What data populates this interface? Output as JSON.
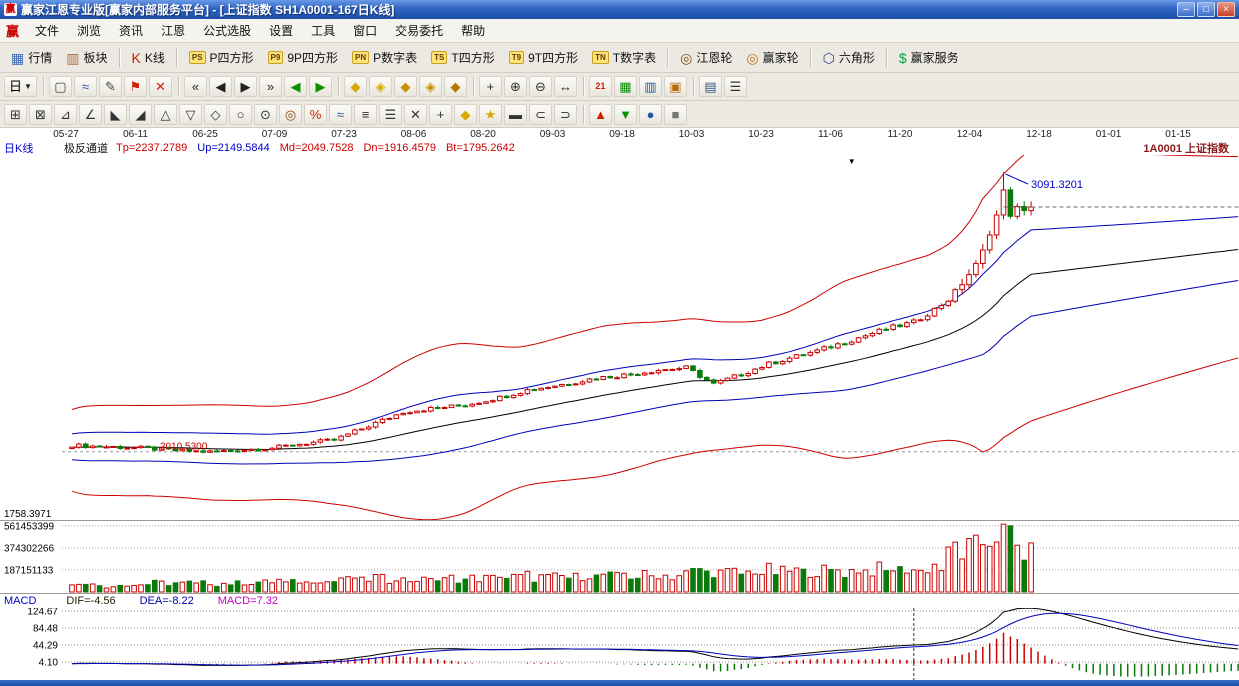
{
  "window": {
    "logo": "赢",
    "title": "赢家江恩专业版[赢家内部服务平台] - [上证指数  SH1A0001-167日K线]",
    "minimize_glyph": "–",
    "maximize_glyph": "□",
    "close_glyph": "×"
  },
  "menu": {
    "logo": "赢",
    "items": [
      "文件",
      "浏览",
      "资讯",
      "江恩",
      "公式选股",
      "设置",
      "工具",
      "窗口",
      "交易委托",
      "帮助"
    ]
  },
  "toolbar_main": {
    "items": [
      {
        "name": "quotes",
        "label": "行情",
        "glyph": "▦",
        "color": "#3a66b0"
      },
      {
        "name": "sectors",
        "label": "板块",
        "glyph": "▥",
        "color": "#b06a3a"
      },
      {
        "sep": true
      },
      {
        "name": "kline",
        "label": "K线",
        "glyph": "K",
        "color": "#cc2200"
      },
      {
        "sep": true
      },
      {
        "name": "p-square",
        "label": "P四方形",
        "badge": "PS"
      },
      {
        "name": "9p-square",
        "label": "9P四方形",
        "badge": "P9"
      },
      {
        "name": "p-number-table",
        "label": "P数字表",
        "badge": "PN"
      },
      {
        "name": "t-square",
        "label": "T四方形",
        "badge": "TS"
      },
      {
        "name": "9t-square",
        "label": "9T四方形",
        "badge": "T9"
      },
      {
        "name": "t-number-table",
        "label": "T数字表",
        "badge": "TN"
      },
      {
        "sep": true
      },
      {
        "name": "gann-wheel",
        "label": "江恩轮",
        "glyph": "◎",
        "color": "#8a4a10"
      },
      {
        "name": "winner-wheel",
        "label": "赢家轮",
        "glyph": "◎",
        "color": "#c07818"
      },
      {
        "sep": true
      },
      {
        "name": "hexagon",
        "label": "六角形",
        "glyph": "⬡",
        "color": "#2a4a8a"
      },
      {
        "sep": true
      },
      {
        "name": "winner-service",
        "label": "赢家服务",
        "glyph": "$",
        "color": "#00a040"
      }
    ]
  },
  "toolbar_draw": {
    "period_label": "日",
    "period_caret": "▼",
    "buttons": [
      {
        "name": "select-rect-tool",
        "glyph": "▢",
        "color": "#444444"
      },
      {
        "name": "wave-tool",
        "glyph": "≈",
        "color": "#2a55aa"
      },
      {
        "name": "pencil-tool",
        "glyph": "✎",
        "color": "#444444"
      },
      {
        "name": "flag-mark-tool",
        "glyph": "⚑",
        "color": "#cc2200"
      },
      {
        "name": "delete-draw-tool",
        "glyph": "✕",
        "color": "#cc2200"
      },
      {
        "sep": true
      },
      {
        "name": "first-bar-button",
        "glyph": "«",
        "color": "#222222"
      },
      {
        "name": "prev-bar-button",
        "glyph": "◀",
        "color": "#222222"
      },
      {
        "name": "next-bar-button",
        "glyph": "▶",
        "color": "#222222"
      },
      {
        "name": "last-bar-button",
        "glyph": "»",
        "color": "#222222"
      },
      {
        "name": "prev-page-button",
        "glyph": "◀",
        "color": "#0a9000"
      },
      {
        "name": "next-page-button",
        "glyph": "▶",
        "color": "#0a9000"
      },
      {
        "sep": true
      },
      {
        "name": "gann-diamond-1",
        "glyph": "◆",
        "color": "#d8a800"
      },
      {
        "name": "gann-diamond-2",
        "glyph": "◈",
        "color": "#d8a800"
      },
      {
        "name": "gann-diamond-3",
        "glyph": "◆",
        "color": "#c89000"
      },
      {
        "name": "gann-diamond-4",
        "glyph": "◈",
        "color": "#c89000"
      },
      {
        "name": "gann-diamond-5",
        "glyph": "◆",
        "color": "#b87800"
      },
      {
        "sep": true
      },
      {
        "name": "crosshair-tool",
        "glyph": "+",
        "color": "#333333"
      },
      {
        "name": "zoom-in-tool",
        "glyph": "⊕",
        "color": "#333333"
      },
      {
        "name": "zoom-out-tool",
        "glyph": "⊖",
        "color": "#333333"
      },
      {
        "name": "pan-tool",
        "glyph": "↔",
        "color": "#333333"
      },
      {
        "sep": true
      },
      {
        "name": "calendar-21-tool",
        "glyph": "21",
        "color": "#cc2200",
        "small": true
      },
      {
        "name": "green-grid-tool",
        "glyph": "▦",
        "color": "#0a9000"
      },
      {
        "name": "blue-grid-tool",
        "glyph": "▥",
        "color": "#2a55aa"
      },
      {
        "name": "orange-grid-tool",
        "glyph": "▣",
        "color": "#b86a10"
      },
      {
        "sep": true
      },
      {
        "name": "save-layout-tool",
        "glyph": "▤",
        "color": "#33557f"
      },
      {
        "name": "list-tool",
        "glyph": "☰",
        "color": "#333333"
      }
    ]
  },
  "toolbar_gann": {
    "buttons": [
      {
        "name": "gann-square-tool",
        "glyph": "⊞",
        "color": "#333333"
      },
      {
        "name": "gann-box-tool",
        "glyph": "⊠",
        "color": "#333333"
      },
      {
        "name": "gann-angle-tool",
        "glyph": "⊿",
        "color": "#333333"
      },
      {
        "name": "angle-line-tool",
        "glyph": "∠",
        "color": "#333333"
      },
      {
        "name": "fan-down-tool",
        "glyph": "◣",
        "color": "#333333"
      },
      {
        "name": "fan-up-tool",
        "glyph": "◢",
        "color": "#333333"
      },
      {
        "name": "triangle-tool",
        "glyph": "△",
        "color": "#333333"
      },
      {
        "name": "inverted-triangle-tool",
        "glyph": "▽",
        "color": "#333333"
      },
      {
        "name": "rhombus-tool",
        "glyph": "◇",
        "color": "#333333"
      },
      {
        "name": "circle-tool",
        "glyph": "○",
        "color": "#333333"
      },
      {
        "name": "concentric-circles-tool",
        "glyph": "⊙",
        "color": "#333333"
      },
      {
        "name": "time-wheel-tool",
        "glyph": "◎",
        "color": "#8a4a10"
      },
      {
        "name": "percent-line-tool",
        "glyph": "%",
        "color": "#cc2200"
      },
      {
        "name": "wave-line-tool",
        "glyph": "≈",
        "color": "#2a55aa"
      },
      {
        "name": "parallel-lines-tool",
        "glyph": "≡",
        "color": "#333333"
      },
      {
        "name": "levels-tool",
        "glyph": "☰",
        "color": "#333333"
      },
      {
        "name": "erase-line-tool",
        "glyph": "✕",
        "color": "#333333"
      },
      {
        "name": "cross-line-tool",
        "glyph": "+",
        "color": "#333333"
      },
      {
        "name": "golden-diamond-tool",
        "glyph": "◆",
        "color": "#d8a800"
      },
      {
        "name": "star-mark-tool",
        "glyph": "★",
        "color": "#d8a800"
      },
      {
        "name": "bar-ruler-tool",
        "glyph": "▬",
        "color": "#333333"
      },
      {
        "name": "arc-left-tool",
        "glyph": "⊂",
        "color": "#333333"
      },
      {
        "name": "arc-right-tool",
        "glyph": "⊃",
        "color": "#333333"
      },
      {
        "sep": true
      },
      {
        "name": "buy-mark-tool",
        "glyph": "▲",
        "color": "#cc2200"
      },
      {
        "name": "sell-mark-tool",
        "glyph": "▼",
        "color": "#0a9000"
      },
      {
        "name": "info-mark-tool",
        "glyph": "●",
        "color": "#2a55aa"
      },
      {
        "name": "note-mark-tool",
        "glyph": "■",
        "color": "#777777"
      }
    ]
  },
  "chart": {
    "pane_label": "日K线",
    "indicator": {
      "name": "极反通道",
      "values": [
        {
          "text": "Tp=2237.2789",
          "color": "#cc0000"
        },
        {
          "text": "Up=2149.5844",
          "color": "#0000cc"
        },
        {
          "text": "Md=2049.7528",
          "color": "#cc0000"
        },
        {
          "text": "Dn=1916.4579",
          "color": "#cc0000"
        },
        {
          "text": "Bt=1795.2642",
          "color": "#cc0000"
        }
      ]
    },
    "symbol_label": "1A0001  上证指数",
    "annotations": {
      "peak_label": "3091.3201",
      "support_label": "2010.5300",
      "min_label": "1758.3971",
      "event_marker": "▼"
    },
    "volume_axis_labels": [
      "561453399",
      "374302266",
      "187151133"
    ],
    "macd": {
      "label": "MACD",
      "dif": "DIF=-4.56",
      "dea": "DEA=-8.22",
      "value": "MACD=7.32",
      "axis_labels": [
        "124.67",
        "84.48",
        "44.29",
        "4.10"
      ]
    }
  },
  "chart_data": {
    "type": "candlestick",
    "symbol": "SH1A0001",
    "symbol_name": "上证指数",
    "period": "日K线",
    "bars_visible": 140,
    "x_tick_labels": [
      "05-27",
      "06-11",
      "06-25",
      "07-09",
      "07-23",
      "08-06",
      "08-20",
      "09-03",
      "09-18",
      "10-03",
      "10-23",
      "11-06",
      "11-20",
      "12-04",
      "12-18",
      "01-01",
      "01-15"
    ],
    "price_axis": {
      "max_annotated": 3091.3201,
      "support_line": 2010.53,
      "min_label": 1758.3971,
      "last_close_dash": 2956
    },
    "close_anchors": {
      "indices": [
        0,
        5,
        10,
        15,
        20,
        25,
        29,
        33,
        38,
        43,
        48,
        53,
        57,
        62,
        66,
        71,
        76,
        81,
        85,
        89,
        93,
        97,
        101,
        104,
        108,
        113,
        118,
        122,
        125,
        127,
        129,
        131,
        133,
        134,
        135,
        136,
        137,
        138,
        139
      ],
      "closes": [
        2035,
        2030,
        2025,
        2015,
        2010,
        2018,
        2025,
        2040,
        2056,
        2110,
        2164,
        2180,
        2191,
        2220,
        2249,
        2270,
        2295,
        2310,
        2326,
        2335,
        2272,
        2310,
        2350,
        2372,
        2400,
        2442,
        2485,
        2511,
        2560,
        2597,
        2660,
        2732,
        2848,
        2925,
        3022,
        2920,
        2958,
        2942,
        2956
      ]
    },
    "peak": {
      "index": 135,
      "high": 3091.3201
    },
    "marker_index": 113,
    "cursor_x_index": 122,
    "channel_values_at_cursor": {
      "Tp": 2237.2789,
      "Up": 2149.5844,
      "Md": 2049.7528,
      "Dn": 1916.4579,
      "Bt": 1795.2642
    },
    "volume_gridlines": [
      561453399,
      374302266,
      187151133
    ],
    "volume_max_bar": 561453399,
    "macd_gridlines": [
      124.67,
      84.48,
      44.29,
      4.1
    ],
    "macd_cursor_values": {
      "DIF": -4.56,
      "DEA": -8.22,
      "MACD": 7.32
    }
  },
  "colors": {
    "up": "#cc0000",
    "down": "#0a7a0a",
    "channel_top": "#cc0000",
    "channel_up": "#0000bb",
    "channel_mid": "#000000",
    "channel_dn": "#0000bb",
    "channel_bt": "#cc0000",
    "macd_dif": "#000000",
    "macd_dea": "#0000bb",
    "hist_pos": "#cc0000",
    "hist_neg": "#0a7a0a",
    "annotation_blue": "#0000cc",
    "annotation_red": "#cc0000"
  }
}
